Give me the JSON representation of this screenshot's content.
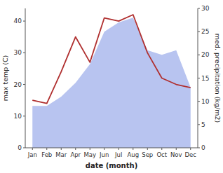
{
  "chart_data": {
    "type": "line",
    "categories": [
      "Jan",
      "Feb",
      "Mar",
      "Apr",
      "May",
      "Jun",
      "Jul",
      "Aug",
      "Sep",
      "Oct",
      "Nov",
      "Dec"
    ],
    "series": [
      {
        "type": "area",
        "axis": "y2",
        "color": "#b8c4f0",
        "values": [
          9,
          9,
          11,
          14,
          18,
          25,
          27,
          28,
          21,
          20,
          21,
          13
        ]
      },
      {
        "type": "line",
        "color": "#b03030",
        "values": [
          15,
          14,
          24,
          35,
          27,
          41,
          40,
          42,
          30,
          22,
          20,
          19
        ]
      }
    ],
    "xlabel": "date (month)",
    "ylabel": "max temp (C)",
    "y2label": "med. precipitation (kg/m2)",
    "ylim": [
      0,
      44
    ],
    "yticks": [
      0,
      10,
      20,
      30,
      40
    ],
    "y2lim": [
      0,
      30
    ],
    "y2ticks": [
      0,
      5,
      10,
      15,
      20,
      25,
      30
    ],
    "grid": false
  }
}
